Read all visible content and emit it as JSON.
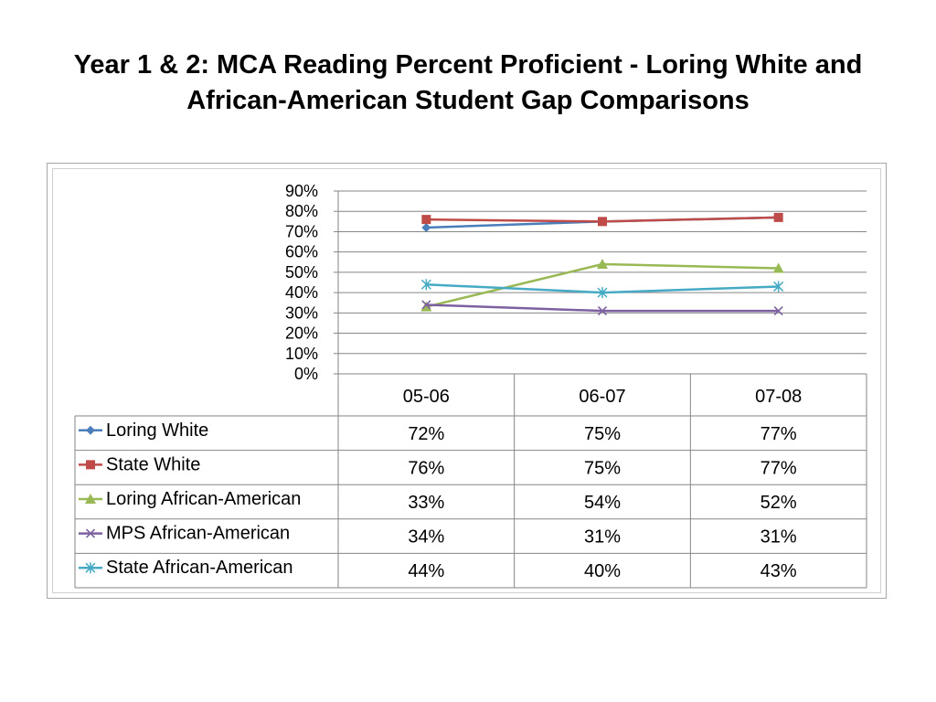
{
  "slide": {
    "title": "Year 1 & 2: MCA Reading Percent Proficient - Loring White and African-American Student Gap Comparisons"
  },
  "chart_data": {
    "type": "line",
    "categories": [
      "05-06",
      "06-07",
      "07-08"
    ],
    "ylim": [
      0,
      0.9
    ],
    "y_ticks": [
      0,
      0.1,
      0.2,
      0.3,
      0.4,
      0.5,
      0.6,
      0.7,
      0.8,
      0.9
    ],
    "y_tick_labels": [
      "0%",
      "10%",
      "20%",
      "30%",
      "40%",
      "50%",
      "60%",
      "70%",
      "80%",
      "90%"
    ],
    "grid": true,
    "legend": "data-table-left",
    "series": [
      {
        "name": "Loring White",
        "values": [
          0.72,
          0.75,
          0.77
        ],
        "labels": [
          "72%",
          "75%",
          "77%"
        ],
        "color": "#4a7ebb",
        "marker": "diamond"
      },
      {
        "name": "State White",
        "values": [
          0.76,
          0.75,
          0.77
        ],
        "labels": [
          "76%",
          "75%",
          "77%"
        ],
        "color": "#be4b48",
        "marker": "square"
      },
      {
        "name": "Loring African-American",
        "values": [
          0.33,
          0.54,
          0.52
        ],
        "labels": [
          "33%",
          "54%",
          "52%"
        ],
        "color": "#98b954",
        "marker": "triangle"
      },
      {
        "name": "MPS African-American",
        "values": [
          0.34,
          0.31,
          0.31
        ],
        "labels": [
          "34%",
          "31%",
          "31%"
        ],
        "color": "#7d60a0",
        "marker": "x"
      },
      {
        "name": "State African-American",
        "values": [
          0.44,
          0.4,
          0.43
        ],
        "labels": [
          "44%",
          "40%",
          "43%"
        ],
        "color": "#46aac5",
        "marker": "star"
      }
    ]
  }
}
